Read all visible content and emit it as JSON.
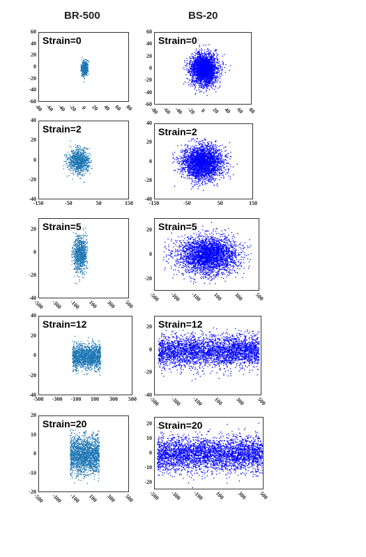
{
  "column_titles": [
    "BR-500",
    "BS-20"
  ],
  "chart_data": [
    {
      "type": "scatter",
      "column": "BR-500",
      "title": "Strain=0",
      "xlim": [
        -80,
        80
      ],
      "ylim": [
        -60,
        60
      ],
      "xticks": [
        "-80",
        "-60",
        "-40",
        "-20",
        "0",
        "20",
        "40",
        "60",
        "80"
      ],
      "xticks_rotated": true,
      "yticks": [
        "60",
        "40",
        "20",
        "0",
        "-20",
        "-40",
        "-60"
      ],
      "color": "#1f77b4",
      "cloud": {
        "cx": 0,
        "cy": 0,
        "sx": 3,
        "sy": 6,
        "xmin": -7,
        "xmax": 7,
        "n": 500,
        "shape": "blob"
      }
    },
    {
      "type": "scatter",
      "column": "BS-20",
      "title": "Strain=0",
      "xlim": [
        -80,
        80
      ],
      "ylim": [
        -60,
        60
      ],
      "xticks": [
        "-80",
        "-60",
        "-40",
        "-20",
        "0",
        "20",
        "40",
        "60",
        "80"
      ],
      "xticks_rotated": true,
      "yticks": [
        "60",
        "40",
        "20",
        "0",
        "-20",
        "-40",
        "-60"
      ],
      "color": "#0000ff",
      "cloud": {
        "cx": 0,
        "cy": 0,
        "sx": 11,
        "sy": 13,
        "xmin": -45,
        "xmax": 45,
        "n": 2600,
        "shape": "gauss"
      }
    },
    {
      "type": "scatter",
      "column": "BR-500",
      "title": "Strain=2",
      "xlim": [
        -150,
        150
      ],
      "ylim": [
        -40,
        40
      ],
      "xticks": [
        "-150",
        "-100",
        "-50",
        "0",
        "50",
        "100",
        "150"
      ],
      "xticks_shown": [
        "-150",
        "-50",
        "50",
        "150"
      ],
      "xticks_rotated": false,
      "yticks": [
        "40",
        "20",
        "0",
        "-20",
        "-40"
      ],
      "color": "#1f77b4",
      "cloud": {
        "cx": -20,
        "cy": 0,
        "sx": 18,
        "sy": 6,
        "xmin": -70,
        "xmax": 25,
        "n": 900,
        "shape": "blob"
      }
    },
    {
      "type": "scatter",
      "column": "BS-20",
      "title": "Strain=2",
      "xlim": [
        -150,
        150
      ],
      "ylim": [
        -40,
        40
      ],
      "xticks": [
        "-150",
        "-100",
        "-50",
        "0",
        "50",
        "100",
        "150"
      ],
      "xticks_shown": [
        "-150",
        "-50",
        "50",
        "150"
      ],
      "xticks_rotated": false,
      "yticks": [
        "40",
        "20",
        "0",
        "-20",
        "-40"
      ],
      "color": "#0000ff",
      "cloud": {
        "cx": -5,
        "cy": 0,
        "sx": 30,
        "sy": 9,
        "xmin": -100,
        "xmax": 100,
        "n": 2800,
        "shape": "gauss"
      }
    },
    {
      "type": "scatter",
      "column": "BR-500",
      "title": "Strain=5",
      "xlim": [
        -500,
        500
      ],
      "ylim": [
        -40,
        30
      ],
      "xticks": [
        "-500",
        "-300",
        "-100",
        "100",
        "300",
        "500"
      ],
      "xticks_rotated": true,
      "yticks": [
        "20",
        "0",
        "-20",
        "-40"
      ],
      "color": "#1f77b4",
      "cloud": {
        "cx": -50,
        "cy": 0,
        "sx": 40,
        "sy": 8,
        "xmin": -150,
        "xmax": 30,
        "n": 800,
        "shape": "blob"
      }
    },
    {
      "type": "scatter",
      "column": "BS-20",
      "title": "Strain=5",
      "xlim": [
        -500,
        500
      ],
      "ylim": [
        -30,
        30
      ],
      "xticks": [
        "-500",
        "-300",
        "-100",
        "100",
        "300",
        "500"
      ],
      "xticks_rotated": true,
      "yticks": [
        "20",
        "0",
        "-20"
      ],
      "color": "#0000ff",
      "cloud": {
        "cx": 0,
        "cy": 0,
        "sx": 140,
        "sy": 8,
        "xmin": -420,
        "xmax": 420,
        "n": 3000,
        "shape": "gauss"
      }
    },
    {
      "type": "scatter",
      "column": "BR-500",
      "title": "Strain=12",
      "xlim": [
        -500,
        500
      ],
      "ylim": [
        -40,
        40
      ],
      "xticks": [
        "-500",
        "-300",
        "-100",
        "100",
        "300",
        "500"
      ],
      "xticks_rotated": false,
      "yticks": [
        "40",
        "20",
        "0",
        "-20",
        "-40"
      ],
      "color": "#1f77b4",
      "cloud": {
        "cx": 0,
        "cy": 0,
        "sx": 0,
        "sy": 6,
        "xmin": -150,
        "xmax": 150,
        "n": 1500,
        "shape": "band"
      }
    },
    {
      "type": "scatter",
      "column": "BS-20",
      "title": "Strain=12",
      "xlim": [
        -500,
        500
      ],
      "ylim": [
        -40,
        30
      ],
      "xticks": [
        "-500",
        "-300",
        "-100",
        "100",
        "300",
        "500"
      ],
      "xticks_rotated": true,
      "yticks": [
        "20",
        "0",
        "-20",
        "-40"
      ],
      "color": "#0000ff",
      "cloud": {
        "cx": 0,
        "cy": 0,
        "sx": 0,
        "sy": 7,
        "xmin": -470,
        "xmax": 470,
        "n": 3200,
        "shape": "band"
      }
    },
    {
      "type": "scatter",
      "column": "BR-500",
      "title": "Strain=20",
      "xlim": [
        -500,
        500
      ],
      "ylim": [
        -20,
        20
      ],
      "xticks": [
        "-500",
        "-300",
        "-100",
        "100",
        "300",
        "500"
      ],
      "xticks_rotated": true,
      "yticks": [
        "20",
        "10",
        "0",
        "-10",
        "-20"
      ],
      "color": "#1f77b4",
      "cloud": {
        "cx": 0,
        "cy": 0,
        "sx": 0,
        "sy": 5,
        "xmin": -160,
        "xmax": 160,
        "n": 1800,
        "shape": "band"
      }
    },
    {
      "type": "scatter",
      "column": "BS-20",
      "title": "Strain=20",
      "xlim": [
        -500,
        500
      ],
      "ylim": [
        -25,
        25
      ],
      "xticks": [
        "-500",
        "-300",
        "-100",
        "100",
        "300",
        "500"
      ],
      "xticks_rotated": true,
      "yticks": [
        "20",
        "10",
        "0",
        "-10",
        "-20"
      ],
      "color": "#0000ff",
      "cloud": {
        "cx": 0,
        "cy": 0,
        "sx": 0,
        "sy": 6,
        "xmin": -480,
        "xmax": 480,
        "n": 3400,
        "shape": "band"
      }
    }
  ]
}
